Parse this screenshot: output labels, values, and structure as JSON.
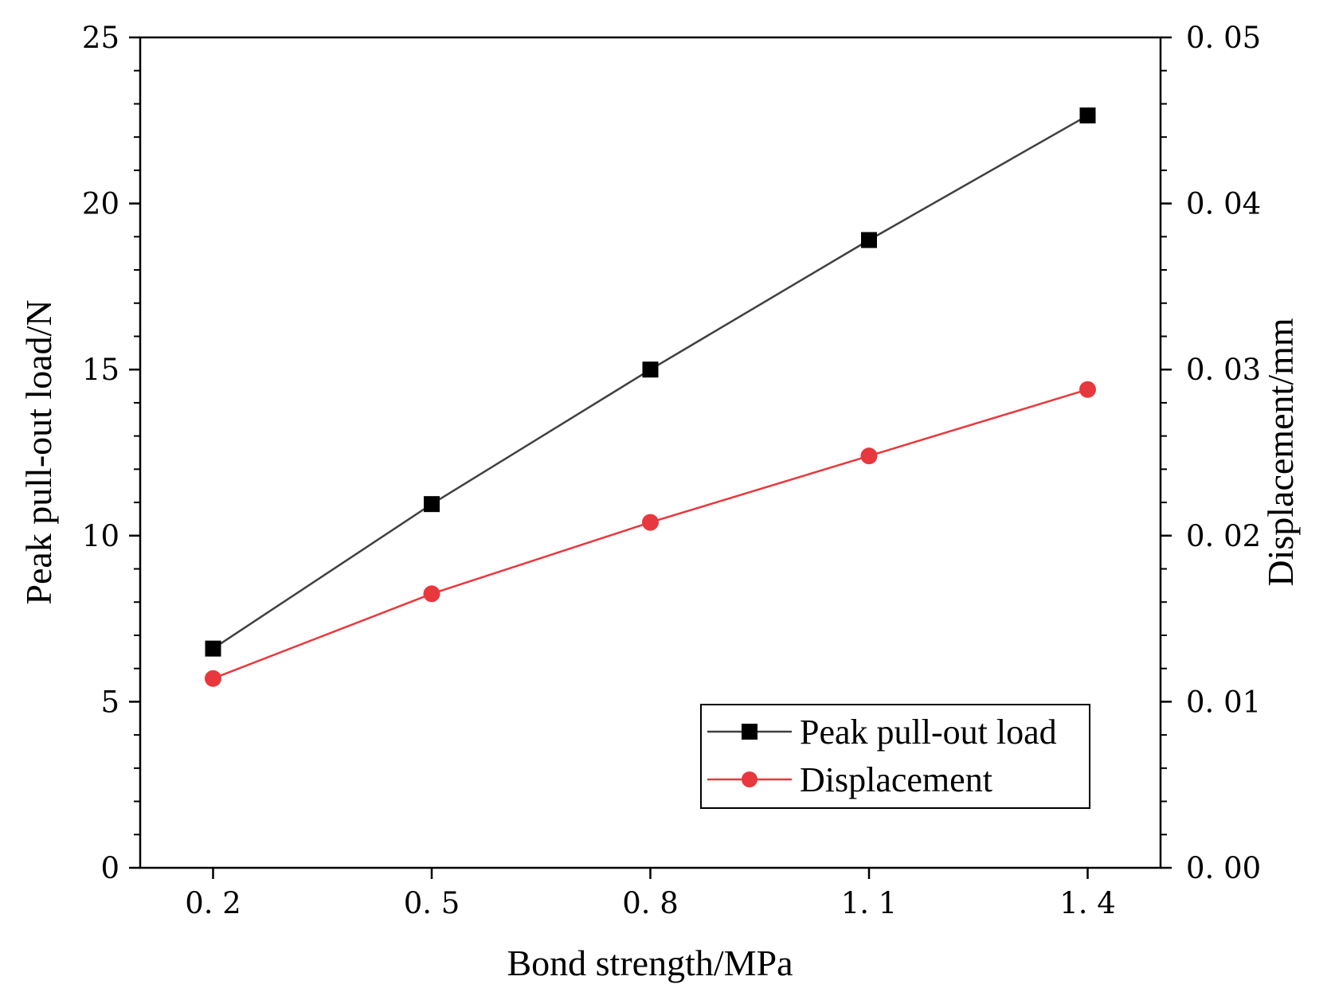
{
  "chart_data": {
    "type": "line",
    "x": [
      0.2,
      0.5,
      0.8,
      1.1,
      1.4
    ],
    "x_tick_labels": [
      "0. 2",
      "0. 5",
      "0. 8",
      "1. 1",
      "1. 4"
    ],
    "xlabel": "Bond strength/MPa",
    "xlim": [
      0.1,
      1.5
    ],
    "ylabel_left": "Peak pull-out load/N",
    "ylim_left": [
      0,
      25
    ],
    "y_left_ticks": [
      0,
      5,
      10,
      15,
      20,
      25
    ],
    "y_left_tick_labels": [
      "0",
      "5",
      "10",
      "15",
      "20",
      "25"
    ],
    "ylabel_right": "Displacement/mm",
    "ylim_right": [
      0,
      0.05
    ],
    "y_right_ticks": [
      0,
      0.01,
      0.02,
      0.03,
      0.04,
      0.05
    ],
    "y_right_tick_labels": [
      "0. 00",
      "0. 01",
      "0. 02",
      "0. 03",
      "0. 04",
      "0. 05"
    ],
    "series": [
      {
        "name": "Peak pull-out load",
        "axis": "left",
        "marker": "square",
        "color": "#000000",
        "line_color": "#404040",
        "values": [
          6.6,
          10.95,
          15.0,
          18.9,
          22.65
        ]
      },
      {
        "name": "Displacement",
        "axis": "right",
        "marker": "circle",
        "color": "#e8383d",
        "line_color": "#e8383d",
        "values": [
          0.0114,
          0.0165,
          0.0208,
          0.0248,
          0.0288
        ]
      }
    ],
    "legend": "bottom-right",
    "grid": false
  }
}
